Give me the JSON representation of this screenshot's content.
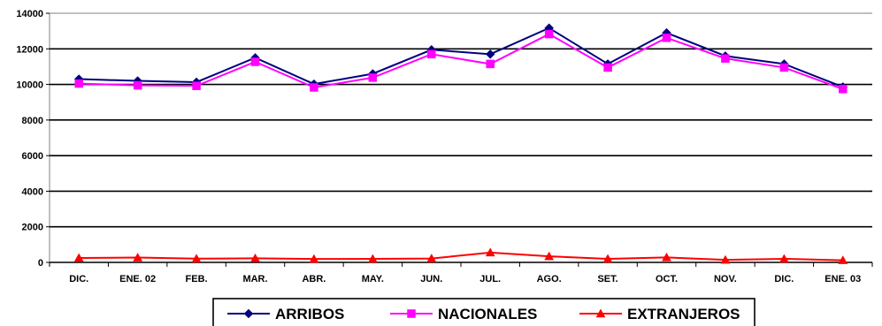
{
  "chart_data": {
    "type": "line",
    "categories": [
      "DIC.",
      "ENE. 02",
      "FEB.",
      "MAR.",
      "ABR.",
      "MAY.",
      "JUN.",
      "JUL.",
      "AGO.",
      "SET.",
      "OCT.",
      "NOV.",
      "DIC.",
      "ENE. 03"
    ],
    "ylim": [
      0,
      14000
    ],
    "yticks": [
      0,
      2000,
      4000,
      6000,
      8000,
      10000,
      12000,
      14000
    ],
    "grid": true,
    "legend_position": "bottom",
    "series": [
      {
        "name": "ARRIBOS",
        "color": "#000080",
        "marker": "diamond",
        "values": [
          10300,
          10200,
          10130,
          11500,
          10020,
          10600,
          11950,
          11700,
          13170,
          11150,
          12900,
          11600,
          11150,
          9860
        ]
      },
      {
        "name": "NACIONALES",
        "color": "#ff00ff",
        "marker": "square",
        "values": [
          10050,
          9950,
          9920,
          11270,
          9830,
          10380,
          11700,
          11150,
          12830,
          10950,
          12620,
          11460,
          10950,
          9740
        ]
      },
      {
        "name": "EXTRANJEROS",
        "color": "#ff0000",
        "marker": "triangle",
        "values": [
          250,
          270,
          210,
          230,
          190,
          200,
          220,
          550,
          340,
          200,
          280,
          140,
          200,
          120
        ]
      }
    ]
  }
}
